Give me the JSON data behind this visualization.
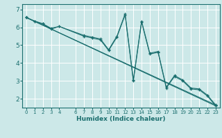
{
  "xlabel": "Humidex (Indice chaleur)",
  "bg_color": "#cce8e8",
  "grid_color": "#ffffff",
  "line_color": "#1a6e6e",
  "marker": "+",
  "xlim": [
    -0.5,
    23.5
  ],
  "ylim": [
    1.5,
    7.3
  ],
  "xticks": [
    0,
    1,
    2,
    3,
    4,
    6,
    7,
    8,
    9,
    10,
    11,
    12,
    13,
    14,
    15,
    16,
    17,
    18,
    19,
    20,
    21,
    22,
    23
  ],
  "yticks": [
    2,
    3,
    4,
    5,
    6,
    7
  ],
  "lines": [
    {
      "x": [
        0,
        1,
        2,
        3,
        4,
        7,
        8,
        9,
        10,
        11,
        12,
        13,
        14,
        15,
        16,
        17,
        18,
        19,
        20,
        21,
        22,
        23
      ],
      "y": [
        6.55,
        6.35,
        6.2,
        5.95,
        6.05,
        5.55,
        5.45,
        5.35,
        4.75,
        5.5,
        6.75,
        3.05,
        6.35,
        4.55,
        4.65,
        2.65,
        3.3,
        3.05,
        2.6,
        2.55,
        2.2,
        1.65
      ]
    },
    {
      "x": [
        0,
        1,
        2,
        3,
        4,
        7,
        8,
        9,
        10,
        11,
        12,
        13,
        14,
        15,
        16,
        17,
        18,
        19,
        20,
        21,
        22,
        23
      ],
      "y": [
        6.55,
        6.35,
        6.2,
        5.9,
        6.05,
        5.5,
        5.4,
        5.3,
        4.7,
        5.45,
        6.7,
        3.0,
        6.3,
        4.5,
        4.6,
        2.6,
        3.25,
        3.0,
        2.55,
        2.5,
        2.15,
        1.6
      ]
    },
    {
      "x": [
        0,
        23
      ],
      "y": [
        6.55,
        1.65
      ]
    },
    {
      "x": [
        0,
        23
      ],
      "y": [
        6.55,
        1.6
      ]
    }
  ]
}
